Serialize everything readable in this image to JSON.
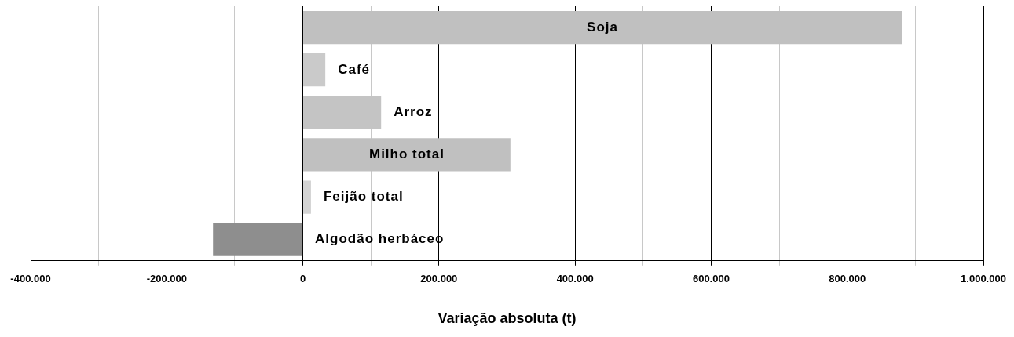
{
  "chart_data": {
    "type": "bar",
    "orientation": "horizontal",
    "categories": [
      "Soja",
      "Café",
      "Arroz",
      "Milho total",
      "Feijão total",
      "Algodão herbáceo"
    ],
    "values": [
      880000,
      33000,
      115000,
      305000,
      12000,
      -132000
    ],
    "colors": [
      "#c0c0c0",
      "#cacaca",
      "#c4c4c4",
      "#c0c0c0",
      "#d4d4d4",
      "#8e8e8e"
    ],
    "xlim": [
      -400000,
      1000000
    ],
    "xticks": [
      {
        "value": -400000,
        "label": "-400.000"
      },
      {
        "value": -300000,
        "label": null
      },
      {
        "value": -200000,
        "label": "-200.000"
      },
      {
        "value": -100000,
        "label": null
      },
      {
        "value": 0,
        "label": "0"
      },
      {
        "value": 100000,
        "label": null
      },
      {
        "value": 200000,
        "label": "200.000"
      },
      {
        "value": 300000,
        "label": null
      },
      {
        "value": 400000,
        "label": "400.000"
      },
      {
        "value": 500000,
        "label": null
      },
      {
        "value": 600000,
        "label": "600.000"
      },
      {
        "value": 700000,
        "label": null
      },
      {
        "value": 800000,
        "label": "800.000"
      },
      {
        "value": 900000,
        "label": null
      },
      {
        "value": 1000000,
        "label": "1.000.000"
      }
    ],
    "xlabel": "Variação absoluta (t)",
    "grid": "x",
    "tick_labels": "x"
  }
}
